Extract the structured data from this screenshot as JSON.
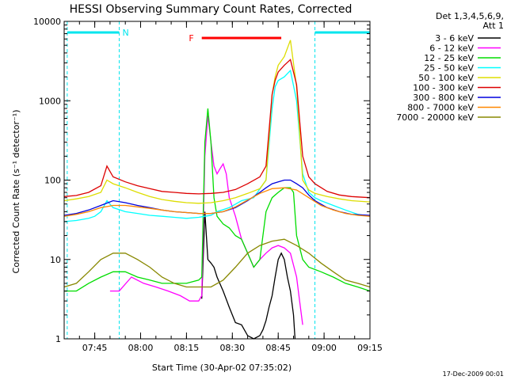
{
  "colors": {
    "bg": "#ffffff",
    "axes": "#000000",
    "cyan": "#00e5ee",
    "red": "#ff0000"
  },
  "chart_data": {
    "type": "line",
    "title": "HESSI Observing Summary Count Rates, Corrected",
    "xlabel": "Start Time (30-Apr-02 07:35:02)",
    "ylabel": "Corrected Count Rate (s⁻¹ detector⁻¹)",
    "x_ticks": [
      "07:45",
      "08:00",
      "08:15",
      "08:30",
      "08:45",
      "09:00",
      "09:15"
    ],
    "x_tick_minutes": [
      10,
      25,
      40,
      55,
      70,
      85,
      100
    ],
    "xlim_minutes_after_start": [
      0,
      100
    ],
    "y_ticks": [
      "1",
      "10",
      "100",
      "1000",
      "10000"
    ],
    "y_tick_values": [
      1,
      10,
      100,
      1000,
      10000
    ],
    "yscale": "log",
    "ylim": [
      1,
      10000
    ],
    "legend": {
      "header": [
        "Det 1,3,4,5,6,9,",
        "Att 1"
      ],
      "position": "right-outside"
    },
    "annotations": {
      "night_label": "N",
      "flare_label": "F",
      "night_intervals_minutes": [
        [
          1,
          18
        ],
        [
          82,
          100
        ]
      ],
      "flare_interval_minutes": [
        45,
        71
      ]
    },
    "series": [
      {
        "name": "3 - 6 keV",
        "color": "#000000",
        "x_min": [
          45,
          46,
          47,
          48,
          49,
          50,
          52,
          54,
          56,
          58,
          60,
          62,
          64,
          65,
          66,
          67,
          68,
          69,
          70,
          71,
          72,
          73,
          74,
          75,
          75.5
        ],
        "y": [
          3.2,
          40,
          10,
          9,
          8,
          6,
          4,
          2.5,
          1.6,
          1.5,
          1.1,
          1.0,
          1.1,
          1.3,
          1.7,
          2.5,
          3.5,
          6,
          10,
          12,
          10,
          6,
          4,
          2,
          1
        ]
      },
      {
        "name": "6 - 12 keV",
        "color": "#ff00ff",
        "x_min": [
          15,
          18,
          22,
          26,
          30,
          34,
          38,
          41,
          44,
          45,
          46,
          47,
          48,
          49,
          50,
          51,
          52,
          53,
          54,
          56,
          58,
          60,
          62,
          64,
          66,
          68,
          70,
          72,
          74,
          76,
          77,
          78
        ],
        "y": [
          4,
          4,
          6,
          5,
          4.5,
          4,
          3.5,
          3,
          3,
          3.5,
          200,
          650,
          300,
          150,
          120,
          140,
          160,
          120,
          60,
          35,
          18,
          12,
          8,
          10,
          12,
          14,
          15,
          14,
          12,
          6,
          3,
          1.5
        ]
      },
      {
        "name": "12 - 25 keV",
        "color": "#00dd00",
        "x_min": [
          0,
          4,
          8,
          12,
          16,
          20,
          24,
          28,
          32,
          36,
          40,
          44,
          45,
          46,
          47,
          48,
          49,
          50,
          52,
          54,
          56,
          58,
          60,
          62,
          64,
          66,
          68,
          70,
          72,
          74,
          75,
          76,
          78,
          80,
          84,
          88,
          92,
          96,
          100
        ],
        "y": [
          4,
          4,
          5,
          6,
          7,
          7,
          6,
          5.5,
          5,
          5,
          5,
          5.5,
          6,
          300,
          800,
          300,
          60,
          35,
          28,
          25,
          20,
          18,
          12,
          8,
          10,
          40,
          60,
          70,
          80,
          80,
          70,
          20,
          10,
          8,
          7,
          6,
          5,
          4.5,
          4
        ]
      },
      {
        "name": "25 - 50 keV",
        "color": "#00ffff",
        "x_min": [
          0,
          4,
          8,
          10,
          12,
          14,
          16,
          20,
          24,
          28,
          32,
          36,
          40,
          44,
          46,
          48,
          50,
          54,
          58,
          62,
          66,
          68,
          69,
          70,
          72,
          74,
          76,
          78,
          80,
          82,
          84,
          88,
          92,
          96,
          100
        ],
        "y": [
          30,
          31,
          33,
          35,
          40,
          55,
          45,
          40,
          38,
          36,
          35,
          34,
          33,
          34,
          35,
          36,
          40,
          45,
          55,
          60,
          100,
          800,
          1500,
          1800,
          2000,
          2400,
          1000,
          120,
          70,
          60,
          55,
          48,
          42,
          37,
          35
        ]
      },
      {
        "name": "50 - 100 keV",
        "color": "#dddd00",
        "x_min": [
          0,
          4,
          8,
          12,
          14,
          16,
          20,
          24,
          28,
          32,
          36,
          40,
          44,
          48,
          52,
          56,
          60,
          64,
          66,
          68,
          69,
          70,
          72,
          74,
          76,
          78,
          80,
          82,
          86,
          90,
          94,
          100
        ],
        "y": [
          55,
          58,
          62,
          70,
          100,
          90,
          80,
          70,
          62,
          57,
          54,
          52,
          51,
          52,
          55,
          60,
          68,
          78,
          100,
          1200,
          2000,
          2800,
          3600,
          5800,
          1500,
          100,
          75,
          68,
          62,
          58,
          55,
          53
        ]
      },
      {
        "name": "100 - 300 keV",
        "color": "#dd0000",
        "x_min": [
          0,
          4,
          8,
          12,
          14,
          16,
          20,
          24,
          28,
          32,
          36,
          40,
          44,
          48,
          52,
          56,
          60,
          64,
          66,
          68,
          69,
          70,
          72,
          74,
          76,
          78,
          80,
          82,
          86,
          90,
          94,
          100
        ],
        "y": [
          62,
          64,
          70,
          85,
          150,
          110,
          95,
          85,
          78,
          72,
          70,
          68,
          67,
          68,
          70,
          76,
          90,
          110,
          150,
          1200,
          1800,
          2300,
          2800,
          3300,
          1600,
          200,
          110,
          90,
          72,
          65,
          62,
          60
        ]
      },
      {
        "name": "300 - 800 keV",
        "color": "#0000dd",
        "x_min": [
          0,
          4,
          8,
          12,
          16,
          20,
          24,
          28,
          32,
          36,
          40,
          44,
          48,
          52,
          56,
          60,
          64,
          66,
          68,
          70,
          72,
          74,
          76,
          78,
          80,
          82,
          86,
          90,
          94,
          100
        ],
        "y": [
          36,
          38,
          42,
          48,
          55,
          52,
          48,
          45,
          42,
          40,
          39,
          38,
          38,
          40,
          45,
          55,
          70,
          80,
          90,
          95,
          100,
          100,
          90,
          80,
          65,
          55,
          45,
          40,
          37,
          36
        ]
      },
      {
        "name": "800 - 7000 keV",
        "color": "#ff8800",
        "x_min": [
          0,
          4,
          8,
          12,
          16,
          20,
          24,
          28,
          32,
          36,
          40,
          44,
          48,
          52,
          56,
          60,
          64,
          68,
          72,
          76,
          80,
          84,
          88,
          92,
          96,
          100
        ],
        "y": [
          35,
          37,
          40,
          45,
          48,
          48,
          46,
          44,
          42,
          40,
          39,
          38,
          38,
          40,
          46,
          56,
          68,
          78,
          80,
          75,
          60,
          48,
          42,
          38,
          36,
          35
        ]
      },
      {
        "name": "7000 - 20000 keV",
        "color": "#888800",
        "x_min": [
          0,
          4,
          8,
          12,
          16,
          20,
          24,
          28,
          32,
          36,
          40,
          44,
          48,
          52,
          56,
          60,
          64,
          68,
          72,
          76,
          80,
          84,
          88,
          92,
          96,
          100
        ],
        "y": [
          4.5,
          5,
          7,
          10,
          12,
          12,
          10,
          8,
          6,
          5,
          4.5,
          4.5,
          4.5,
          5.5,
          8,
          12,
          15,
          17,
          18,
          15,
          12,
          9,
          7,
          5.5,
          5,
          4.5
        ]
      }
    ]
  },
  "footer": "17-Dec-2009 00:01"
}
